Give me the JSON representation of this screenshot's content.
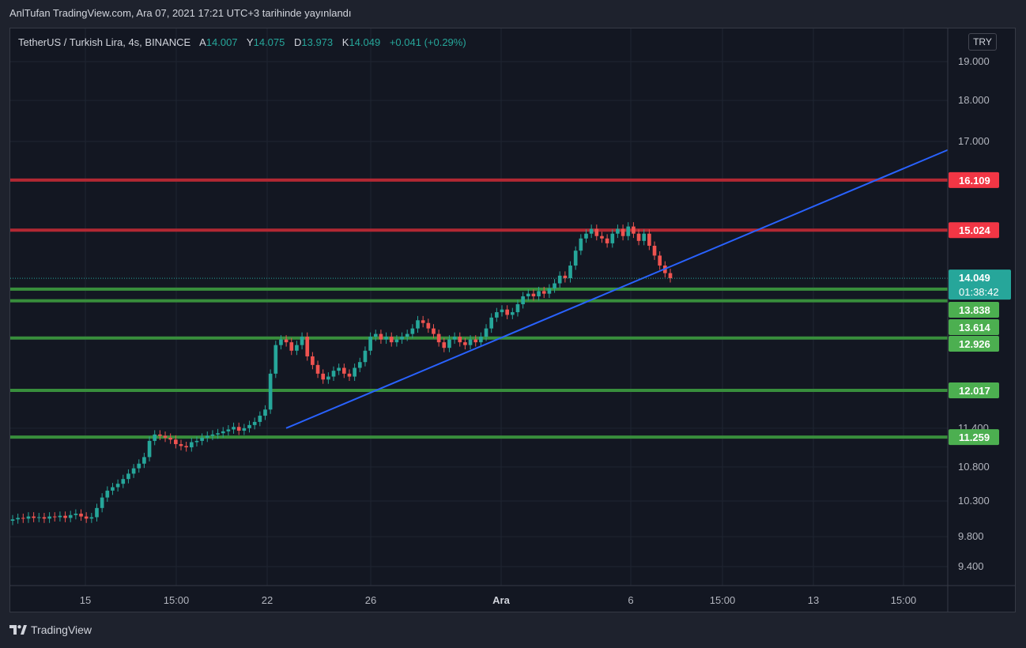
{
  "header": {
    "caption": "AnlTufan TradingView.com, Ara 07, 2021 17:21 UTC+3 tarihinde yayınlandı"
  },
  "legend": {
    "symbol": "TetherUS / Turkish Lira, 4s, BINANCE",
    "open_label": "A",
    "open_value": "14.007",
    "high_label": "Y",
    "high_value": "14.075",
    "low_label": "D",
    "low_value": "13.973",
    "close_label": "K",
    "close_value": "14.049",
    "change": "+0.041 (+0.29%)"
  },
  "currency": "TRY",
  "footer": {
    "brand": "TradingView"
  },
  "colors": {
    "up": "#26a69a",
    "down": "#ef5350",
    "resistance": "#f23645",
    "support": "#4caf50",
    "trendline": "#2962ff",
    "background": "#131722"
  },
  "chart_data": {
    "type": "candlestick",
    "instrument": "TetherUS / Turkish Lira",
    "interval": "4s",
    "exchange": "BINANCE",
    "y_axis": {
      "scale": "log",
      "ticks": [
        "19.000",
        "18.000",
        "17.000",
        "11.400",
        "10.800",
        "10.300",
        "9.800",
        "9.400"
      ]
    },
    "x_axis": {
      "ticks": [
        {
          "label": "15",
          "bold": false
        },
        {
          "label": "15:00",
          "bold": false
        },
        {
          "label": "22",
          "bold": false
        },
        {
          "label": "26",
          "bold": false
        },
        {
          "label": "Ara",
          "bold": true
        },
        {
          "label": "6",
          "bold": false
        },
        {
          "label": "15:00",
          "bold": false
        },
        {
          "label": "13",
          "bold": false
        },
        {
          "label": "15:00",
          "bold": false
        }
      ]
    },
    "last_price": {
      "value": "14.049",
      "countdown": "01:38:42"
    },
    "horizontal_levels": [
      {
        "value": "16.109",
        "type": "resistance"
      },
      {
        "value": "15.024",
        "type": "resistance"
      },
      {
        "value": "13.838",
        "type": "support"
      },
      {
        "value": "13.614",
        "type": "support"
      },
      {
        "value": "12.926",
        "type": "support"
      },
      {
        "value": "12.017",
        "type": "support"
      },
      {
        "value": "11.259",
        "type": "support"
      }
    ],
    "trendline": {
      "from": 11.4,
      "to": 16.8
    },
    "close_path": [
      10.04,
      10.06,
      10.05,
      10.08,
      10.06,
      10.07,
      10.05,
      10.08,
      10.07,
      10.09,
      10.06,
      10.1,
      10.12,
      10.08,
      10.05,
      10.07,
      10.2,
      10.35,
      10.45,
      10.5,
      10.55,
      10.62,
      10.7,
      10.78,
      10.85,
      10.95,
      11.2,
      11.3,
      11.28,
      11.25,
      11.22,
      11.15,
      11.12,
      11.1,
      11.18,
      11.2,
      11.25,
      11.28,
      11.3,
      11.32,
      11.35,
      11.38,
      11.42,
      11.36,
      11.4,
      11.45,
      11.5,
      11.6,
      11.7,
      12.3,
      12.8,
      12.9,
      12.85,
      12.7,
      12.8,
      12.95,
      12.6,
      12.45,
      12.3,
      12.2,
      12.25,
      12.35,
      12.4,
      12.3,
      12.25,
      12.4,
      12.5,
      12.7,
      12.95,
      13.0,
      12.9,
      12.95,
      12.85,
      12.9,
      12.95,
      13.0,
      13.1,
      13.25,
      13.2,
      13.1,
      13.0,
      12.85,
      12.75,
      12.9,
      12.95,
      12.85,
      12.8,
      12.9,
      12.85,
      12.95,
      13.1,
      13.3,
      13.4,
      13.45,
      13.35,
      13.4,
      13.55,
      13.7,
      13.75,
      13.7,
      13.8,
      13.75,
      13.85,
      13.95,
      14.1,
      14.05,
      14.3,
      14.6,
      14.85,
      14.95,
      15.05,
      14.9,
      14.85,
      14.75,
      14.95,
      15.05,
      14.9,
      15.1,
      14.95,
      14.8,
      14.95,
      14.7,
      14.5,
      14.3,
      14.15,
      14.05
    ]
  }
}
